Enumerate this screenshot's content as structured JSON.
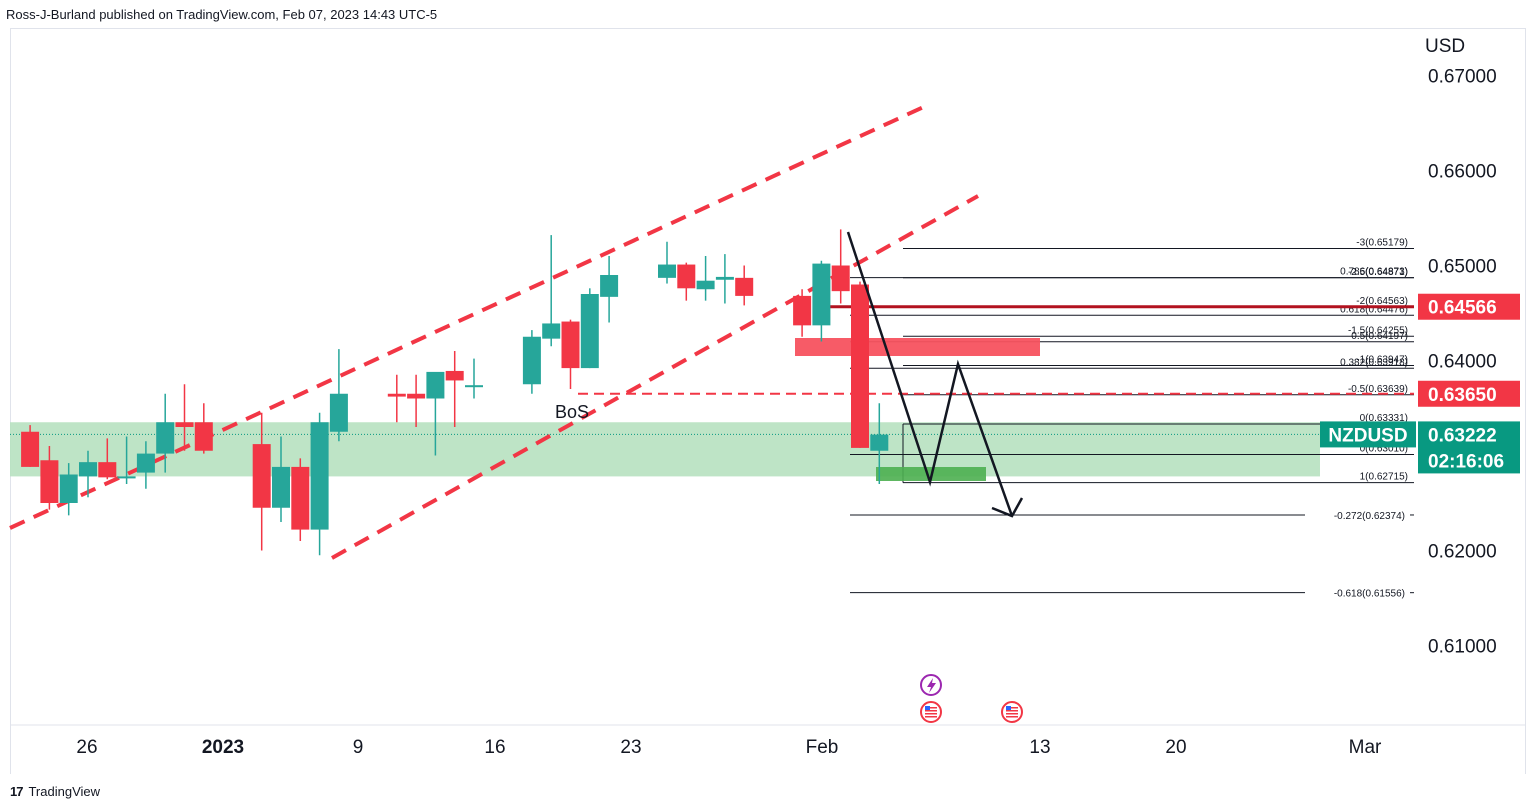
{
  "header": {
    "publish_text": "Ross-J-Burland published on TradingView.com, Feb 07, 2023 14:43 UTC-5"
  },
  "footer": {
    "logo_mark": "17",
    "brand": "TradingView"
  },
  "chart_data": {
    "type": "candlestick",
    "symbol": "NZDUSD",
    "currency": "USD",
    "ylim": [
      0.6,
      0.672
    ],
    "y_ticks": [
      "0.67000",
      "0.66000",
      "0.65000",
      "0.64000",
      "0.62000",
      "0.61000"
    ],
    "y_tick_values": [
      0.67,
      0.66,
      0.65,
      0.64,
      0.62,
      0.61
    ],
    "x_ticks": [
      {
        "label": "26",
        "day": 0,
        "bold": false
      },
      {
        "label": "2023",
        "day": 7,
        "bold": true
      },
      {
        "label": "9",
        "day": 14,
        "bold": false
      },
      {
        "label": "16",
        "day": 21,
        "bold": false
      },
      {
        "label": "23",
        "day": 28,
        "bold": false
      },
      {
        "label": "Feb",
        "day": 37,
        "bold": false
      },
      {
        "label": "13",
        "day": 49,
        "bold": false
      },
      {
        "label": "20",
        "day": 56,
        "bold": false
      },
      {
        "label": "Mar",
        "day": 64,
        "bold": false
      }
    ],
    "candles": [
      {
        "day": -3,
        "o": 0.6325,
        "h": 0.6332,
        "l": 0.6288,
        "c": 0.6288
      },
      {
        "day": -2,
        "o": 0.6295,
        "h": 0.631,
        "l": 0.6243,
        "c": 0.625
      },
      {
        "day": -1,
        "o": 0.625,
        "h": 0.6292,
        "l": 0.6237,
        "c": 0.628
      },
      {
        "day": 0,
        "o": 0.6278,
        "h": 0.6305,
        "l": 0.6256,
        "c": 0.6293
      },
      {
        "day": 1,
        "o": 0.6293,
        "h": 0.6318,
        "l": 0.6275,
        "c": 0.6277
      },
      {
        "day": 2,
        "o": 0.6277,
        "h": 0.632,
        "l": 0.627,
        "c": 0.6278
      },
      {
        "day": 3,
        "o": 0.6282,
        "h": 0.6315,
        "l": 0.6265,
        "c": 0.6302
      },
      {
        "day": 4,
        "o": 0.6302,
        "h": 0.6365,
        "l": 0.6282,
        "c": 0.6335
      },
      {
        "day": 5,
        "o": 0.6335,
        "h": 0.6375,
        "l": 0.6305,
        "c": 0.633
      },
      {
        "day": 6,
        "o": 0.6335,
        "h": 0.6355,
        "l": 0.6302,
        "c": 0.6305
      },
      {
        "day": 9,
        "o": 0.6312,
        "h": 0.6345,
        "l": 0.62,
        "c": 0.6245
      },
      {
        "day": 10,
        "o": 0.6245,
        "h": 0.632,
        "l": 0.623,
        "c": 0.6288
      },
      {
        "day": 11,
        "o": 0.6288,
        "h": 0.6297,
        "l": 0.621,
        "c": 0.6222
      },
      {
        "day": 12,
        "o": 0.6222,
        "h": 0.6345,
        "l": 0.6195,
        "c": 0.6335
      },
      {
        "day": 13,
        "o": 0.6325,
        "h": 0.6412,
        "l": 0.6315,
        "c": 0.6365
      },
      {
        "day": 16,
        "o": 0.6365,
        "h": 0.6385,
        "l": 0.6335,
        "c": 0.6362
      },
      {
        "day": 17,
        "o": 0.6365,
        "h": 0.6385,
        "l": 0.633,
        "c": 0.636
      },
      {
        "day": 18,
        "o": 0.636,
        "h": 0.6385,
        "l": 0.63,
        "c": 0.6388
      },
      {
        "day": 19,
        "o": 0.6389,
        "h": 0.641,
        "l": 0.633,
        "c": 0.6379
      },
      {
        "day": 20,
        "o": 0.6372,
        "h": 0.6402,
        "l": 0.636,
        "c": 0.6374
      },
      {
        "day": 23,
        "o": 0.6375,
        "h": 0.6432,
        "l": 0.6365,
        "c": 0.6425
      },
      {
        "day": 24,
        "o": 0.6423,
        "h": 0.6532,
        "l": 0.6415,
        "c": 0.6439
      },
      {
        "day": 25,
        "o": 0.6441,
        "h": 0.6443,
        "l": 0.637,
        "c": 0.6392
      },
      {
        "day": 26,
        "o": 0.6392,
        "h": 0.6476,
        "l": 0.6392,
        "c": 0.647
      },
      {
        "day": 27,
        "o": 0.6467,
        "h": 0.651,
        "l": 0.644,
        "c": 0.649
      },
      {
        "day": 30,
        "o": 0.6487,
        "h": 0.6525,
        "l": 0.6481,
        "c": 0.6501
      },
      {
        "day": 31,
        "o": 0.6501,
        "h": 0.6503,
        "l": 0.6463,
        "c": 0.6476
      },
      {
        "day": 32,
        "o": 0.6475,
        "h": 0.651,
        "l": 0.6463,
        "c": 0.6484
      },
      {
        "day": 33,
        "o": 0.6485,
        "h": 0.6512,
        "l": 0.646,
        "c": 0.6488
      },
      {
        "day": 34,
        "o": 0.6487,
        "h": 0.65,
        "l": 0.6458,
        "c": 0.6468
      },
      {
        "day": 37,
        "o": 0.6468,
        "h": 0.6475,
        "l": 0.6425,
        "c": 0.6437
      },
      {
        "day": 38,
        "o": 0.6437,
        "h": 0.6505,
        "l": 0.642,
        "c": 0.6502
      },
      {
        "day": 39,
        "o": 0.65,
        "h": 0.6538,
        "l": 0.646,
        "c": 0.6473
      },
      {
        "day": 40,
        "o": 0.648,
        "h": 0.6483,
        "l": 0.6308,
        "c": 0.6308
      },
      {
        "day": 41,
        "o": 0.6305,
        "h": 0.6355,
        "l": 0.627,
        "c": 0.6322
      }
    ],
    "fib_levels": [
      {
        "label": "-3(0.65179)",
        "price": 0.65179
      },
      {
        "label": "-2.5(0.64871)",
        "price": 0.64871
      },
      {
        "label": "0.786(0.64873)",
        "price": 0.64873
      },
      {
        "label": "-2(0.64563)",
        "price": 0.64563
      },
      {
        "label": "0.618(0.64476)",
        "price": 0.64476
      },
      {
        "label": "-1.5(0.64255)",
        "price": 0.64255
      },
      {
        "label": "0.5(0.64197)",
        "price": 0.64197
      },
      {
        "label": "-1(0.63947)",
        "price": 0.63947
      },
      {
        "label": "0.382(0.63918)",
        "price": 0.63918
      },
      {
        "label": "-0.5(0.63639)",
        "price": 0.63639
      },
      {
        "label": "0(0.63331)",
        "price": 0.63331
      },
      {
        "label": "0(0.63010)",
        "price": 0.6301
      },
      {
        "label": "1(0.62715)",
        "price": 0.62715
      },
      {
        "label": "-0.272(0.62374)",
        "price": 0.62374
      },
      {
        "label": "-0.618(0.61556)",
        "price": 0.61556
      }
    ],
    "price_labels": [
      {
        "name": "level-064566",
        "text": "0.64566",
        "price": 0.64566,
        "bg": "#f23645"
      },
      {
        "name": "level-063650",
        "text": "0.63650",
        "price": 0.6365,
        "bg": "#f23645"
      },
      {
        "name": "last-price",
        "text": "0.63222",
        "price": 0.63222,
        "bg": "#089981",
        "symbol": "NZDUSD",
        "countdown": "02:16:06"
      }
    ],
    "demand_zone": [
      0.6278,
      0.6335
    ],
    "annotation": "BoS",
    "colors": {
      "up": "#26a69a",
      "down": "#f23645",
      "zone": "#b7e1c0",
      "resistance_line": "#f23645"
    }
  }
}
